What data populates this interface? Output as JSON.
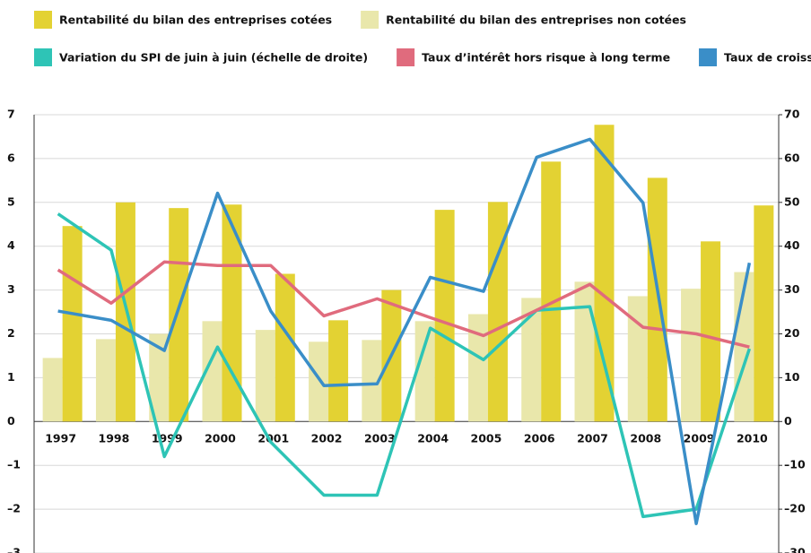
{
  "chart_data": {
    "type": "combo",
    "categories": [
      "1997",
      "1998",
      "1999",
      "2000",
      "2001",
      "2002",
      "2003",
      "2004",
      "2005",
      "2006",
      "2007",
      "2008",
      "2009",
      "2010"
    ],
    "series": [
      {
        "name": "Rentabilité du bilan des entreprises cotées",
        "type": "bar",
        "color": "#e3d233",
        "values": [
          4.46,
          5.0,
          4.87,
          4.95,
          3.37,
          2.31,
          3.0,
          4.83,
          5.01,
          5.93,
          6.77,
          5.56,
          4.11,
          4.93
        ]
      },
      {
        "name": "Rentabilité du bilan des entreprises non cotées",
        "type": "bar",
        "color": "#e9e7ab",
        "values": [
          1.45,
          1.88,
          2.0,
          2.29,
          2.09,
          1.82,
          1.86,
          2.29,
          2.45,
          2.82,
          3.19,
          2.86,
          3.03,
          3.41
        ]
      },
      {
        "name": "Variation du SPI de juin à juin (échelle de droite)",
        "type": "line",
        "axis": "y2",
        "color": "#2ec4b6",
        "values": [
          47.4,
          39.1,
          -8.0,
          17.0,
          -4.7,
          -16.8,
          -16.8,
          21.3,
          14.1,
          25.4,
          26.2,
          -21.7,
          -20.0,
          16.6
        ]
      },
      {
        "name": "Taux d’intérêt hors risque à long terme",
        "type": "line",
        "color": "#e06b7d",
        "values": [
          3.46,
          2.7,
          3.64,
          3.56,
          3.56,
          2.41,
          2.8,
          2.37,
          1.96,
          2.54,
          3.13,
          2.15,
          2.0,
          1.7
        ]
      },
      {
        "name": "Taux de croissance du PIB",
        "type": "line",
        "color": "#3a8ec8",
        "values": [
          2.52,
          2.31,
          1.62,
          5.21,
          2.52,
          0.82,
          0.86,
          3.29,
          2.97,
          6.03,
          6.44,
          4.99,
          -2.33,
          3.62
        ]
      }
    ],
    "ylim": [
      -3,
      7
    ],
    "yticks": [
      {
        "value": -3,
        "label": "–3"
      },
      {
        "value": -2,
        "label": "–2"
      },
      {
        "value": -1,
        "label": "–1"
      },
      0,
      1,
      2,
      3,
      4,
      5,
      6,
      7
    ],
    "y2lim": [
      -30,
      70
    ],
    "y2ticks": [
      {
        "value": -30,
        "label": "–30"
      },
      {
        "value": -20,
        "label": "–20"
      },
      {
        "value": -10,
        "label": "–10"
      },
      0,
      10,
      20,
      30,
      40,
      50,
      60,
      70
    ],
    "grid": true
  }
}
